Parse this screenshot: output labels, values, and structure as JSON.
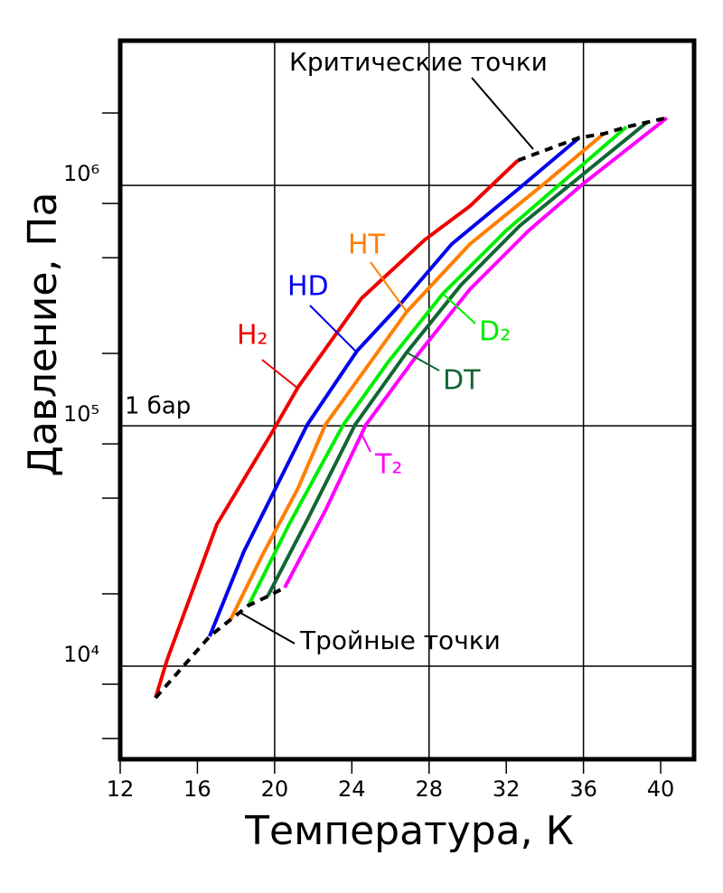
{
  "chart_data": {
    "type": "line",
    "x_label": "Температура, К",
    "y_label": "Давление, Па",
    "xlim": [
      12,
      41.73
    ],
    "xticks": [
      12,
      16,
      20,
      24,
      28,
      32,
      36,
      40
    ],
    "xgrid": [
      20,
      28,
      36
    ],
    "ylim": [
      4100,
      4000000
    ],
    "log_y": true,
    "yticks": [
      {
        "value": 10000,
        "label": "10⁴"
      },
      {
        "value": 100000,
        "label": "10⁵"
      },
      {
        "value": 1000000,
        "label": "10⁶"
      }
    ],
    "minor_yticks": [
      5000,
      20000,
      50000,
      200000,
      500000,
      2000000
    ],
    "annotations": [
      "1 бар",
      "Критические точки",
      "Тройные точки"
    ],
    "series": [
      {
        "name": "H₂",
        "color": "#ee0000",
        "x": [
          13.83,
          14.43,
          17.01,
          19.82,
          21.22,
          24.5,
          27.78,
          30.12,
          32.6
        ],
        "values": [
          7380,
          10620,
          38900,
          92500,
          145000,
          339000,
          594000,
          820000,
          1270000
        ]
      },
      {
        "name": "HD",
        "color": "#0000ee",
        "x": [
          16.63,
          18.41,
          19.82,
          21.69,
          24.27,
          26.37,
          29.18,
          32.69,
          35.78
        ],
        "values": [
          13300,
          30000,
          50400,
          101000,
          205000,
          311000,
          570000,
          975000,
          1580000
        ]
      },
      {
        "name": "HT",
        "color": "#ff7f00",
        "x": [
          17.71,
          19.35,
          21.22,
          22.63,
          26.84,
          30.12,
          33.86,
          37.05
        ],
        "values": [
          15600,
          28800,
          55100,
          101000,
          298000,
          570000,
          1000000,
          1640000
        ]
      },
      {
        "name": "D₂",
        "color": "#00ee00",
        "x": [
          18.65,
          20.75,
          23.56,
          25.9,
          28.71,
          31.99,
          34.71,
          38.22
        ],
        "values": [
          17900,
          38900,
          101000,
          185000,
          354000,
          649000,
          1000000,
          1750000
        ]
      },
      {
        "name": "DT",
        "color": "#116633",
        "x": [
          19.63,
          21.69,
          24.17,
          26.84,
          29.65,
          32.69,
          35.27,
          39.29
        ],
        "values": [
          19500,
          40600,
          101000,
          202000,
          385000,
          678000,
          1000000,
          1830000
        ]
      },
      {
        "name": "T₂",
        "color": "#ff00ff",
        "x": [
          20.52,
          22.63,
          24.73,
          27.31,
          30.12,
          33.16,
          35.88,
          40.32
        ],
        "values": [
          21200,
          44400,
          101000,
          193000,
          370000,
          649000,
          1000000,
          1910000
        ]
      }
    ],
    "triple_line": {
      "x": [
        13.83,
        16.63,
        17.71,
        18.65,
        19.63,
        20.52
      ],
      "values": [
        7380,
        13300,
        15600,
        17900,
        19500,
        21200
      ]
    },
    "critical_line": {
      "x": [
        32.6,
        35.78,
        37.05,
        38.22,
        39.29,
        40.32
      ],
      "values": [
        1270000,
        1580000,
        1640000,
        1750000,
        1830000,
        1910000
      ]
    }
  }
}
